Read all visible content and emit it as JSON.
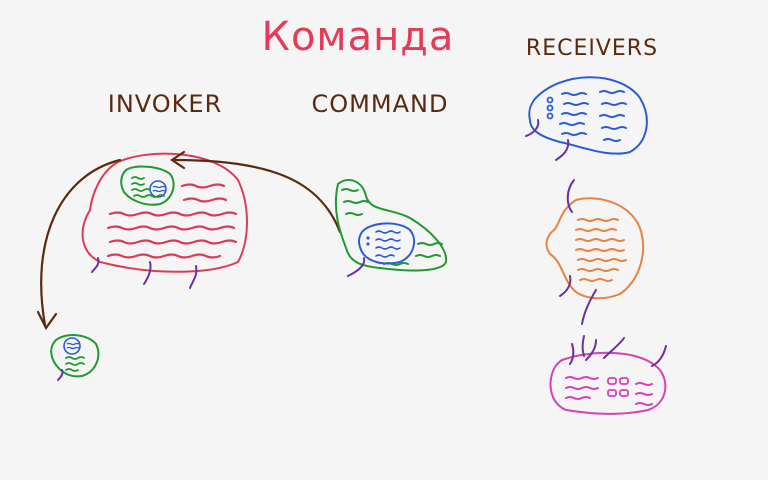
{
  "title": "Команда",
  "labels": {
    "invoker": "INVOKER",
    "command": "COMMAND",
    "receivers": "RECEIVERS"
  },
  "colors": {
    "title": "#e53a5a",
    "label": "#5a2a10",
    "invoker": "#dc3b55",
    "command": "#1e9a2f",
    "receiver_blue": "#2a5bd7",
    "receiver_orange": "#e8833f",
    "receiver_pink": "#d640b8",
    "connector": "#6a2fa0",
    "arrow": "#5a2a10",
    "background": "#f5f5f5"
  }
}
